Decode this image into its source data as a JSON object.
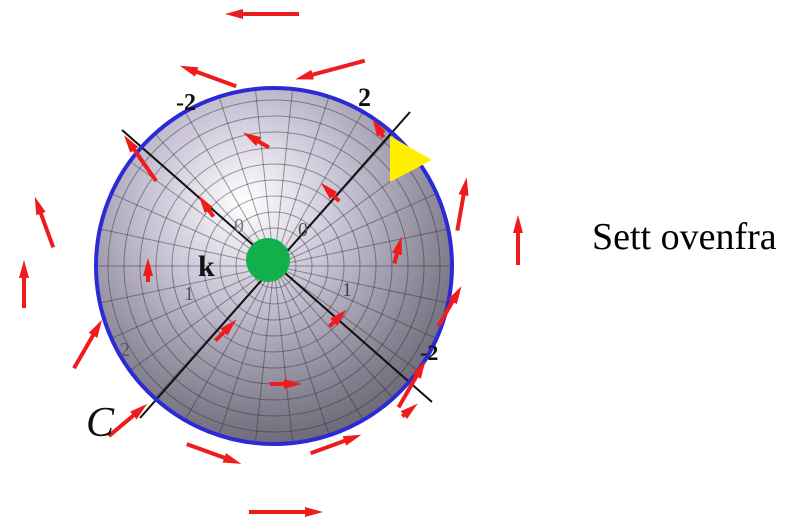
{
  "labels": {
    "center": "k",
    "curve": "C",
    "view_caption": "Sett ovenfra",
    "tick_top_left": "-2",
    "tick_top_right": "2",
    "tick_bottom_right": "-2",
    "tick_bottom_left": "2",
    "inner_tick_0a": "0",
    "inner_tick_0b": "0",
    "inner_tick_1a": "1",
    "inner_tick_1b": "1"
  },
  "colors": {
    "rim": "#2a2ad6",
    "field_arrows": "#ee1c1c",
    "center_dot": "#11b04b",
    "direction_marker": "#ffee00",
    "grid_lines": "#2b2b2b"
  },
  "icons": {
    "center_dot": "green-dot",
    "direction_marker": "yellow-triangle"
  }
}
